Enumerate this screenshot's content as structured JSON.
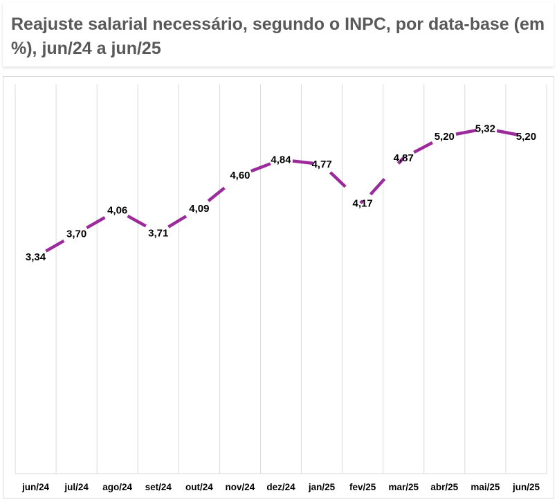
{
  "header": {
    "title": "Reajuste salarial necessário, segundo o INPC, por data-base (em %), jun/24 a jun/25"
  },
  "colors": {
    "line": "#9b2a9b",
    "grid": "#d9d9d9",
    "title_text": "#595959"
  },
  "chart_data": {
    "type": "line",
    "title": "Reajuste salarial necessário, segundo o INPC, por data-base (em %), jun/24 a jun/25",
    "xlabel": "",
    "ylabel": "",
    "categories": [
      "jun/24",
      "jul/24",
      "ago/24",
      "set/24",
      "out/24",
      "nov/24",
      "dez/24",
      "jan/25",
      "fev/25",
      "mar/25",
      "abr/25",
      "mai/25",
      "jun/25"
    ],
    "series": [
      {
        "values": [
          3.34,
          3.7,
          4.06,
          3.71,
          4.09,
          4.6,
          4.84,
          4.77,
          4.17,
          4.87,
          5.2,
          5.32,
          5.2
        ],
        "labels": [
          "3,34",
          "3,70",
          "4,06",
          "3,71",
          "4,09",
          "4,60",
          "4,84",
          "4,77",
          "4,17",
          "4,87",
          "5,20",
          "5,32",
          "5,20"
        ]
      }
    ],
    "ylim": [
      0,
      6
    ],
    "grid": "vertical",
    "legend": "none",
    "line_style": "dashed"
  }
}
